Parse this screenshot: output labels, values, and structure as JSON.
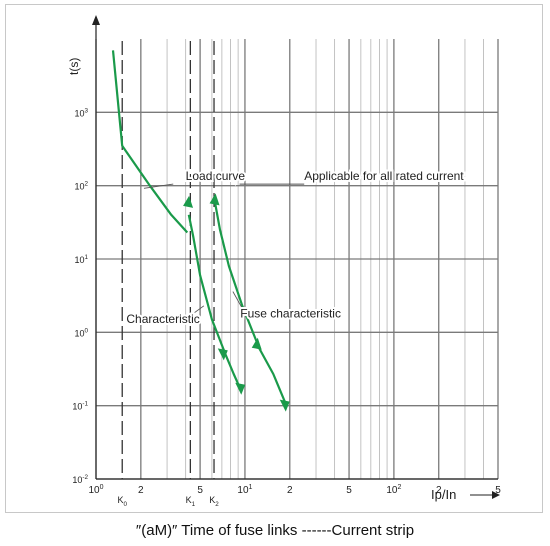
{
  "caption": "″(aM)″  Time of fuse links ------Current strip",
  "chart_data": {
    "type": "line",
    "title": "",
    "ylabel": "t(s)",
    "xlabel": "Ip/In",
    "x_scale": "log",
    "y_scale": "log",
    "xlim": [
      1,
      500
    ],
    "ylim": [
      0.01,
      10000
    ],
    "x_ticks": [
      {
        "value": 1,
        "label": "10",
        "sup": "0"
      },
      {
        "value": 2,
        "label": "2"
      },
      {
        "value": 5,
        "label": "5"
      },
      {
        "value": 10,
        "label": "10",
        "sup": "1"
      },
      {
        "value": 20,
        "label": "2"
      },
      {
        "value": 50,
        "label": "5"
      },
      {
        "value": 100,
        "label": "10",
        "sup": "2"
      },
      {
        "value": 200,
        "label": "2"
      },
      {
        "value": 500,
        "label": "5"
      }
    ],
    "y_ticks": [
      {
        "value": 0.01,
        "label": "10",
        "sup": "-2"
      },
      {
        "value": 0.1,
        "label": "10",
        "sup": "-1"
      },
      {
        "value": 1,
        "label": "10",
        "sup": "0"
      },
      {
        "value": 10,
        "label": "10",
        "sup": "1"
      },
      {
        "value": 100,
        "label": "10",
        "sup": "2"
      },
      {
        "value": 1000,
        "label": "10",
        "sup": "3"
      }
    ],
    "k_markers": [
      {
        "value": 1.5,
        "label": "K",
        "sub": "0"
      },
      {
        "value": 4.3,
        "label": "K",
        "sub": "1"
      },
      {
        "value": 6.2,
        "label": "K",
        "sub": "2"
      }
    ],
    "series": [
      {
        "name": "Load curve",
        "color": "#1a9a4a",
        "points": [
          [
            1.3,
            7000
          ],
          [
            1.5,
            350
          ],
          [
            2.3,
            100
          ],
          [
            3.2,
            40
          ],
          [
            4.1,
            23
          ]
        ]
      },
      {
        "name": "Characteristic",
        "color": "#1a9a4a",
        "points": [
          [
            4.2,
            40
          ],
          [
            4.5,
            20
          ],
          [
            5.0,
            6
          ],
          [
            6.0,
            1.5
          ],
          [
            7.4,
            0.5
          ],
          [
            8.4,
            0.27
          ],
          [
            9.3,
            0.17
          ]
        ]
      },
      {
        "name": "Fuse characteristic",
        "color": "#1a9a4a",
        "points": [
          [
            6.2,
            70
          ],
          [
            6.8,
            25
          ],
          [
            7.8,
            8
          ],
          [
            9.6,
            2.3
          ],
          [
            12.5,
            0.6
          ],
          [
            15.5,
            0.27
          ],
          [
            19,
            0.1
          ]
        ]
      }
    ],
    "arrows": [
      {
        "at": [
          4.15,
          60
        ],
        "dir": "up"
      },
      {
        "at": [
          6.25,
          65
        ],
        "dir": "up"
      },
      {
        "at": [
          7.1,
          0.5
        ],
        "dir": "down"
      },
      {
        "at": [
          9.3,
          0.17
        ],
        "dir": "down"
      },
      {
        "at": [
          12.0,
          0.7
        ],
        "dir": "up"
      },
      {
        "at": [
          18.5,
          0.1
        ],
        "dir": "down"
      }
    ],
    "annotations": [
      {
        "text": "Load curve",
        "at": [
          4.0,
          120
        ]
      },
      {
        "text": "Applicable for all rated current",
        "at": [
          25,
          120
        ]
      },
      {
        "text": "Characteristic",
        "at": [
          1.6,
          1.35
        ]
      },
      {
        "text": "Fuse characteristic",
        "at": [
          9.3,
          1.6
        ]
      }
    ],
    "grid": true
  }
}
